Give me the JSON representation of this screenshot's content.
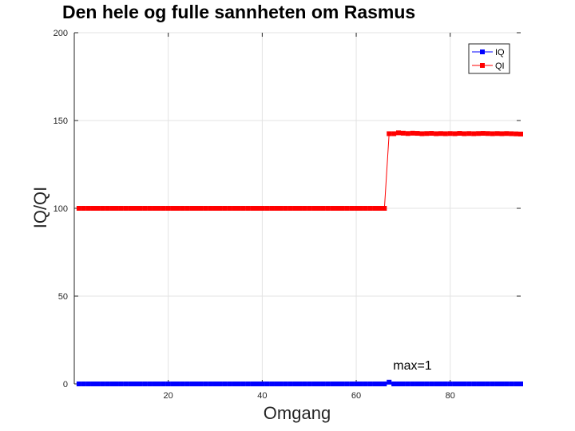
{
  "chart_data": {
    "type": "line",
    "title": "Den hele og fulle sannheten om Rasmus",
    "xlabel": "Omgang",
    "ylabel": "IQ/QI",
    "xlim": [
      0,
      95
    ],
    "ylim": [
      0,
      200
    ],
    "x_ticks": [
      20,
      40,
      60,
      80
    ],
    "y_ticks": [
      0,
      50,
      100,
      150,
      200
    ],
    "grid": true,
    "legend_position": "top-right",
    "x": [
      1,
      2,
      3,
      4,
      5,
      6,
      7,
      8,
      9,
      10,
      11,
      12,
      13,
      14,
      15,
      16,
      17,
      18,
      19,
      20,
      21,
      22,
      23,
      24,
      25,
      26,
      27,
      28,
      29,
      30,
      31,
      32,
      33,
      34,
      35,
      36,
      37,
      38,
      39,
      40,
      41,
      42,
      43,
      44,
      45,
      46,
      47,
      48,
      49,
      50,
      51,
      52,
      53,
      54,
      55,
      56,
      57,
      58,
      59,
      60,
      61,
      62,
      63,
      64,
      65,
      66,
      67,
      68,
      69,
      70,
      71,
      72,
      73,
      74,
      75,
      76,
      77,
      78,
      79,
      80,
      81,
      82,
      83,
      84,
      85,
      86,
      87,
      88,
      89,
      90,
      91,
      92,
      93,
      94,
      95
    ],
    "series": [
      {
        "name": "IQ",
        "color": "#0000ff",
        "values": [
          0,
          0,
          0,
          0,
          0,
          0,
          0,
          0,
          0,
          0,
          0,
          0,
          0,
          0,
          0,
          0,
          0,
          0,
          0,
          0,
          0,
          0,
          0,
          0,
          0,
          0,
          0,
          0,
          0,
          0,
          0,
          0,
          0,
          0,
          0,
          0,
          0,
          0,
          0,
          0,
          0,
          0,
          0,
          0,
          0,
          0,
          0,
          0,
          0,
          0,
          0,
          0,
          0,
          0,
          0,
          0,
          0,
          0,
          0,
          0,
          0,
          0,
          0,
          0,
          0,
          0,
          1,
          0,
          0,
          0,
          0,
          0,
          0,
          0,
          0,
          0,
          0,
          0,
          0,
          0,
          0,
          0,
          0,
          0,
          0,
          0,
          0,
          0,
          0,
          0,
          0,
          0,
          0,
          0,
          0
        ]
      },
      {
        "name": "QI",
        "color": "#ff0000",
        "values": [
          100,
          100,
          100,
          100,
          100,
          100,
          100,
          100,
          100,
          100,
          100,
          100,
          100,
          100,
          100,
          100,
          100,
          100,
          100,
          100,
          100,
          100,
          100,
          100,
          100,
          100,
          100,
          100,
          100,
          100,
          100,
          100,
          100,
          100,
          100,
          100,
          100,
          100,
          100,
          100,
          100,
          100,
          100,
          100,
          100,
          100,
          100,
          100,
          100,
          100,
          100,
          100,
          100,
          100,
          100,
          100,
          100,
          100,
          100,
          100,
          100,
          100,
          100,
          100,
          100,
          100,
          142.5,
          142.5,
          143,
          142.8,
          142.6,
          142.8,
          142.7,
          142.5,
          142.6,
          142.7,
          142.5,
          142.6,
          142.5,
          142.6,
          142.5,
          142.7,
          142.5,
          142.6,
          142.5,
          142.6,
          142.7,
          142.6,
          142.5,
          142.6,
          142.5,
          142.6,
          142.5,
          142.4,
          142.3
        ]
      }
    ],
    "annotations": [
      {
        "text": "max=1",
        "x": 67,
        "y": 1
      }
    ]
  }
}
